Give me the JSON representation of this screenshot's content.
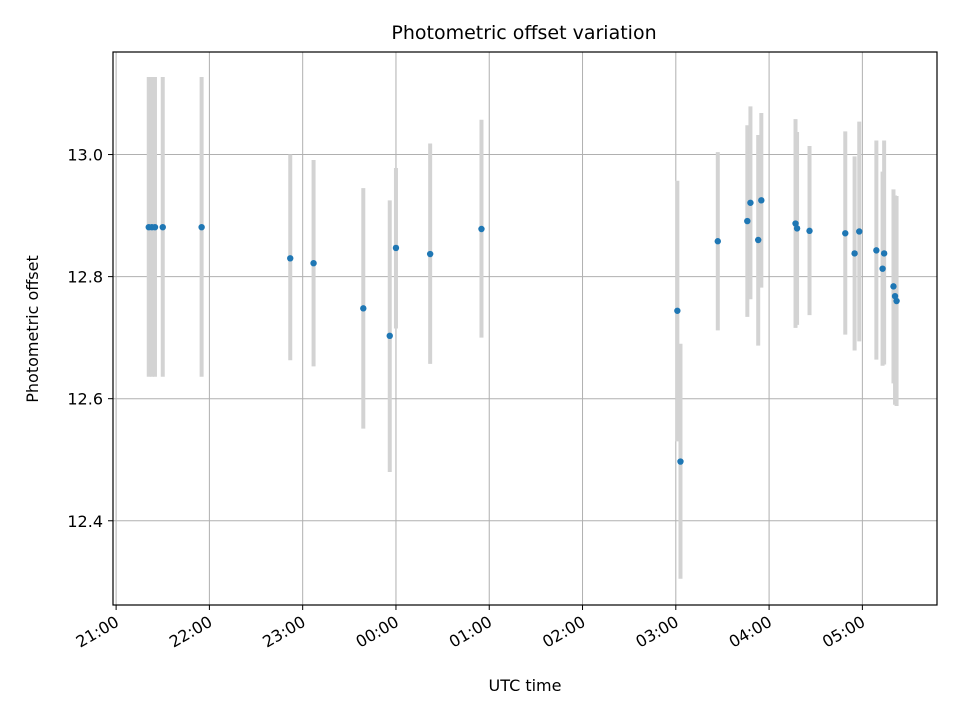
{
  "chart_data": {
    "type": "scatter",
    "title": "Photometric offset variation",
    "xlabel": "UTC time",
    "ylabel": "Photometric offset",
    "grid": true,
    "xlim": [
      "2000-01-01T20:58",
      "2000-01-02T05:48"
    ],
    "ylim": [
      12.262,
      13.168
    ],
    "x_ticks": [
      {
        "time": "2000-01-01T21:00",
        "label": "21:00"
      },
      {
        "time": "2000-01-01T22:00",
        "label": "22:00"
      },
      {
        "time": "2000-01-01T23:00",
        "label": "23:00"
      },
      {
        "time": "2000-01-02T00:00",
        "label": "00:00"
      },
      {
        "time": "2000-01-02T01:00",
        "label": "01:00"
      },
      {
        "time": "2000-01-02T02:00",
        "label": "02:00"
      },
      {
        "time": "2000-01-02T03:00",
        "label": "03:00"
      },
      {
        "time": "2000-01-02T04:00",
        "label": "04:00"
      },
      {
        "time": "2000-01-02T05:00",
        "label": "05:00"
      }
    ],
    "y_ticks": [
      {
        "value": 12.4,
        "label": "12.4"
      },
      {
        "value": 12.6,
        "label": "12.6"
      },
      {
        "value": 12.8,
        "label": "12.8"
      },
      {
        "value": 13.0,
        "label": "13.0"
      }
    ],
    "point_color": "#1f77b4",
    "errorbar_color": "#d3d3d3",
    "points": [
      {
        "t": "2000-01-01T21:21",
        "y": 12.881,
        "lo": 12.636,
        "hi": 13.127
      },
      {
        "t": "2000-01-01T21:23",
        "y": 12.881,
        "lo": 12.636,
        "hi": 13.127
      },
      {
        "t": "2000-01-01T21:25",
        "y": 12.881,
        "lo": 12.636,
        "hi": 13.127
      },
      {
        "t": "2000-01-01T21:30",
        "y": 12.881,
        "lo": 12.636,
        "hi": 13.127
      },
      {
        "t": "2000-01-01T21:55",
        "y": 12.881,
        "lo": 12.636,
        "hi": 13.127
      },
      {
        "t": "2000-01-01T22:52",
        "y": 12.83,
        "lo": 12.663,
        "hi": 13.0
      },
      {
        "t": "2000-01-01T23:07",
        "y": 12.822,
        "lo": 12.653,
        "hi": 12.991
      },
      {
        "t": "2000-01-01T23:39",
        "y": 12.748,
        "lo": 12.551,
        "hi": 12.945
      },
      {
        "t": "2000-01-01T23:56",
        "y": 12.703,
        "lo": 12.48,
        "hi": 12.925
      },
      {
        "t": "2000-01-02T00:00",
        "y": 12.847,
        "lo": 12.715,
        "hi": 12.978
      },
      {
        "t": "2000-01-02T00:22",
        "y": 12.837,
        "lo": 12.657,
        "hi": 13.018
      },
      {
        "t": "2000-01-02T00:55",
        "y": 12.878,
        "lo": 12.7,
        "hi": 13.057
      },
      {
        "t": "2000-01-02T03:01",
        "y": 12.744,
        "lo": 12.53,
        "hi": 12.957
      },
      {
        "t": "2000-01-02T03:03",
        "y": 12.497,
        "lo": 12.305,
        "hi": 12.69
      },
      {
        "t": "2000-01-02T03:27",
        "y": 12.858,
        "lo": 12.712,
        "hi": 13.004
      },
      {
        "t": "2000-01-02T03:46",
        "y": 12.891,
        "lo": 12.734,
        "hi": 13.048
      },
      {
        "t": "2000-01-02T03:48",
        "y": 12.921,
        "lo": 12.763,
        "hi": 13.079
      },
      {
        "t": "2000-01-02T03:53",
        "y": 12.86,
        "lo": 12.687,
        "hi": 13.032
      },
      {
        "t": "2000-01-02T03:55",
        "y": 12.925,
        "lo": 12.782,
        "hi": 13.068
      },
      {
        "t": "2000-01-02T04:17",
        "y": 12.887,
        "lo": 12.716,
        "hi": 13.058
      },
      {
        "t": "2000-01-02T04:18",
        "y": 12.879,
        "lo": 12.721,
        "hi": 13.037
      },
      {
        "t": "2000-01-02T04:26",
        "y": 12.875,
        "lo": 12.737,
        "hi": 13.014
      },
      {
        "t": "2000-01-02T04:49",
        "y": 12.871,
        "lo": 12.705,
        "hi": 13.038
      },
      {
        "t": "2000-01-02T04:55",
        "y": 12.838,
        "lo": 12.679,
        "hi": 12.997
      },
      {
        "t": "2000-01-02T04:58",
        "y": 12.874,
        "lo": 12.694,
        "hi": 13.054
      },
      {
        "t": "2000-01-02T05:09",
        "y": 12.843,
        "lo": 12.664,
        "hi": 13.023
      },
      {
        "t": "2000-01-02T05:14",
        "y": 12.838,
        "lo": 12.656,
        "hi": 13.023
      },
      {
        "t": "2000-01-02T05:13",
        "y": 12.813,
        "lo": 12.654,
        "hi": 12.972
      },
      {
        "t": "2000-01-02T05:20",
        "y": 12.784,
        "lo": 12.625,
        "hi": 12.943
      },
      {
        "t": "2000-01-02T05:21",
        "y": 12.768,
        "lo": 12.59,
        "hi": 12.933
      },
      {
        "t": "2000-01-02T05:22",
        "y": 12.76,
        "lo": 12.588,
        "hi": 12.932
      }
    ]
  }
}
